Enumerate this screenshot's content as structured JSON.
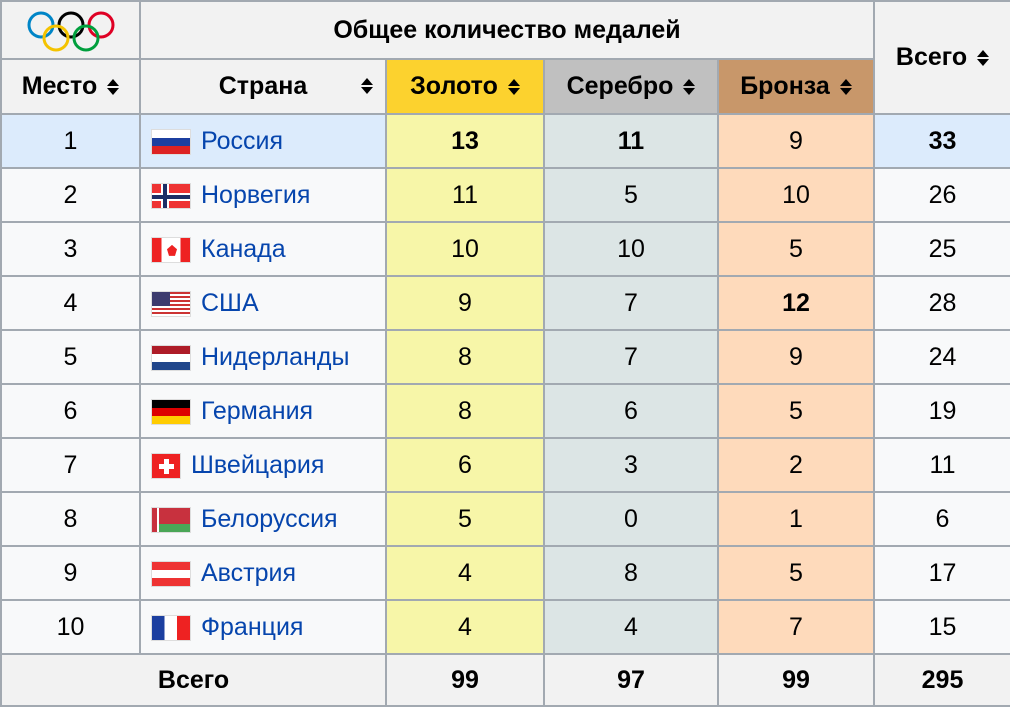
{
  "header": {
    "group_title": "Общее количество медалей",
    "place": "Место",
    "country": "Страна",
    "gold": "Золото",
    "silver": "Серебро",
    "bronze": "Бронза",
    "total": "Всего"
  },
  "colors": {
    "gold": "#fcd22e",
    "silver": "#c0c0c0",
    "bronze": "#c8976a",
    "highlight": "#dcebfc",
    "link": "#0645ad"
  },
  "rows": [
    {
      "place": "1",
      "country": "Россия",
      "flag": "ru",
      "gold": "13",
      "silver": "11",
      "bronze": "9",
      "total": "33",
      "highlight": true,
      "bold": [
        "gold",
        "silver",
        "total"
      ]
    },
    {
      "place": "2",
      "country": "Норвегия",
      "flag": "no",
      "gold": "11",
      "silver": "5",
      "bronze": "10",
      "total": "26"
    },
    {
      "place": "3",
      "country": "Канада",
      "flag": "ca",
      "gold": "10",
      "silver": "10",
      "bronze": "5",
      "total": "25"
    },
    {
      "place": "4",
      "country": "США",
      "flag": "us",
      "gold": "9",
      "silver": "7",
      "bronze": "12",
      "total": "28",
      "bold": [
        "bronze"
      ]
    },
    {
      "place": "5",
      "country": "Нидерланды",
      "flag": "nl",
      "gold": "8",
      "silver": "7",
      "bronze": "9",
      "total": "24"
    },
    {
      "place": "6",
      "country": "Германия",
      "flag": "de",
      "gold": "8",
      "silver": "6",
      "bronze": "5",
      "total": "19"
    },
    {
      "place": "7",
      "country": "Швейцария",
      "flag": "ch",
      "gold": "6",
      "silver": "3",
      "bronze": "2",
      "total": "11"
    },
    {
      "place": "8",
      "country": "Белоруссия",
      "flag": "by",
      "gold": "5",
      "silver": "0",
      "bronze": "1",
      "total": "6"
    },
    {
      "place": "9",
      "country": "Австрия",
      "flag": "at",
      "gold": "4",
      "silver": "8",
      "bronze": "5",
      "total": "17"
    },
    {
      "place": "10",
      "country": "Франция",
      "flag": "fr",
      "gold": "4",
      "silver": "4",
      "bronze": "7",
      "total": "15"
    }
  ],
  "footer": {
    "label": "Всего",
    "gold": "99",
    "silver": "97",
    "bronze": "99",
    "total": "295"
  }
}
